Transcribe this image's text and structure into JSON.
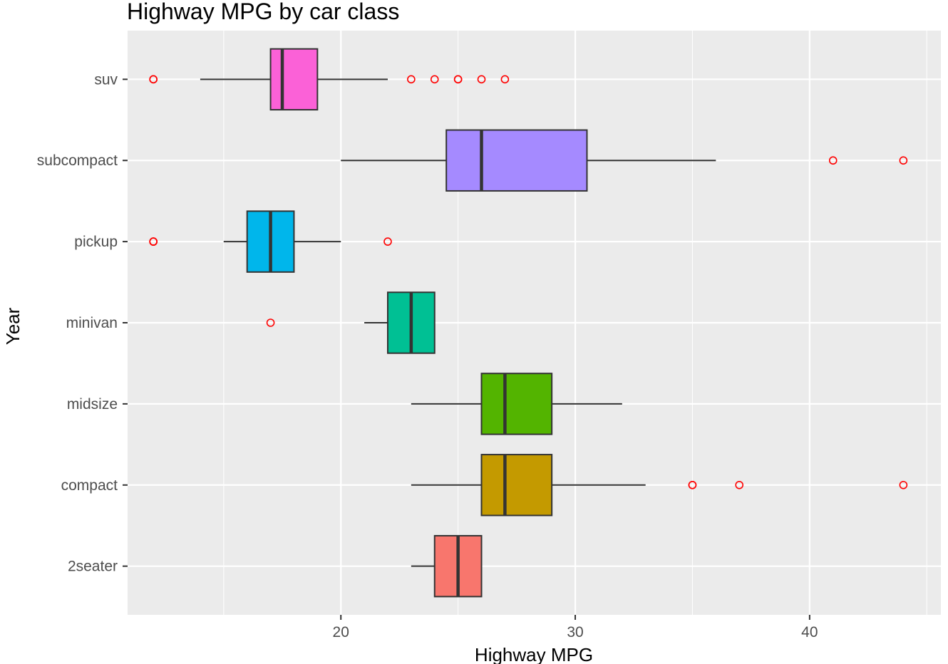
{
  "chart_data": {
    "type": "boxplot",
    "orientation": "horizontal",
    "title": "Highway MPG by car class",
    "xlabel": "Highway MPG",
    "ylabel": "Year",
    "xlim": [
      10.9,
      45.6
    ],
    "x_ticks": [
      20,
      30,
      40
    ],
    "grid": true,
    "legend": "none",
    "outlier_color": "#ff0000",
    "categories": [
      "2seater",
      "compact",
      "midsize",
      "minivan",
      "pickup",
      "subcompact",
      "suv"
    ],
    "boxes": [
      {
        "category": "2seater",
        "whisker_low": 23,
        "q1": 24,
        "median": 25,
        "q3": 26,
        "whisker_high": 26,
        "outliers": [],
        "color": "#F8766D"
      },
      {
        "category": "compact",
        "whisker_low": 23,
        "q1": 26,
        "median": 27,
        "q3": 29,
        "whisker_high": 33,
        "outliers": [
          35,
          35,
          37,
          44
        ],
        "color": "#C49A00"
      },
      {
        "category": "midsize",
        "whisker_low": 23,
        "q1": 26,
        "median": 27,
        "q3": 29,
        "whisker_high": 32,
        "outliers": [],
        "color": "#53B400"
      },
      {
        "category": "minivan",
        "whisker_low": 21,
        "q1": 22,
        "median": 23,
        "q3": 24,
        "whisker_high": 24,
        "outliers": [
          17
        ],
        "color": "#00C094"
      },
      {
        "category": "pickup",
        "whisker_low": 15,
        "q1": 16,
        "median": 17,
        "q3": 18,
        "whisker_high": 20,
        "outliers": [
          12,
          12,
          12,
          22
        ],
        "color": "#00B6EB"
      },
      {
        "category": "subcompact",
        "whisker_low": 20,
        "q1": 24.5,
        "median": 26,
        "q3": 30.5,
        "whisker_high": 36,
        "outliers": [
          41,
          44
        ],
        "color": "#A58AFF"
      },
      {
        "category": "suv",
        "whisker_low": 14,
        "q1": 17,
        "median": 17.5,
        "q3": 19,
        "whisker_high": 22,
        "outliers": [
          12,
          12,
          23,
          24,
          25,
          25,
          26,
          27
        ],
        "color": "#FB61D7"
      }
    ]
  }
}
